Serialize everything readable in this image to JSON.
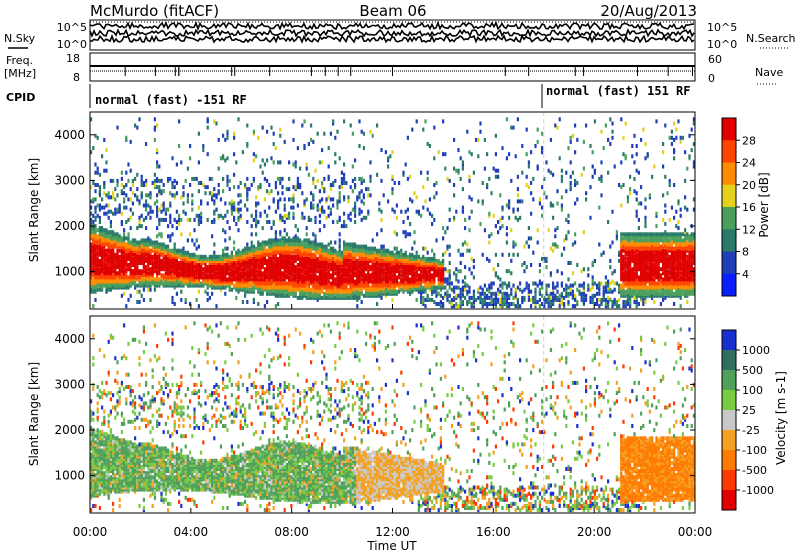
{
  "header": {
    "station": "McMurdo (fitACF)",
    "beam": "Beam 06",
    "date": "20/Aug/2013"
  },
  "left_labels": {
    "nsky": "N.Sky",
    "freq": "Freq.",
    "mhz": "[MHz]",
    "cpid": "CPID"
  },
  "right_labels": {
    "nsearch": "N.Search",
    "nave": "Nave"
  },
  "cpid_segments": [
    "normal (fast) -151 RF",
    "normal (fast) 151 RF"
  ],
  "noise_panel": {
    "left_ticks": [
      "10^5",
      "10^0"
    ],
    "right_ticks": [
      "10^5",
      "10^0"
    ]
  },
  "freq_panel": {
    "left_ticks": [
      "18",
      "8"
    ],
    "right_ticks": [
      "60",
      "0"
    ]
  },
  "x_axis": {
    "label": "Time UT",
    "ticks": [
      "00:00",
      "04:00",
      "08:00",
      "12:00",
      "16:00",
      "20:00",
      "00:00"
    ]
  },
  "chart_data": [
    {
      "type": "heatmap",
      "name": "power",
      "ylabel": "Slant Range [km]",
      "y_ticks": [
        "1000",
        "2000",
        "3000",
        "4000"
      ],
      "ylim": [
        180,
        4500
      ],
      "xlim_hours": [
        0,
        24
      ],
      "colorbar": {
        "label": "Power [dB]",
        "ticks": [
          "4",
          "8",
          "12",
          "16",
          "20",
          "24",
          "28"
        ],
        "colors": [
          "#0a1eff",
          "#1f3fb8",
          "#2a7a6a",
          "#4aa05a",
          "#e3d11a",
          "#ff8c00",
          "#ff4500",
          "#e00000"
        ]
      }
    },
    {
      "type": "heatmap",
      "name": "velocity",
      "ylabel": "Slant Range [km]",
      "y_ticks": [
        "1000",
        "2000",
        "3000",
        "4000"
      ],
      "ylim": [
        180,
        4500
      ],
      "xlim_hours": [
        0,
        24
      ],
      "colorbar": {
        "label": "Velocity [m s-1]",
        "ticks": [
          "1000",
          "500",
          "100",
          "25",
          "-25",
          "-100",
          "-500",
          "-1000"
        ],
        "colors": [
          "#1a2fcf",
          "#2f6f5f",
          "#4fa05a",
          "#77cc44",
          "#c8c8c8",
          "#f4a020",
          "#ff7a00",
          "#ff3a00",
          "#e00000"
        ]
      }
    }
  ]
}
